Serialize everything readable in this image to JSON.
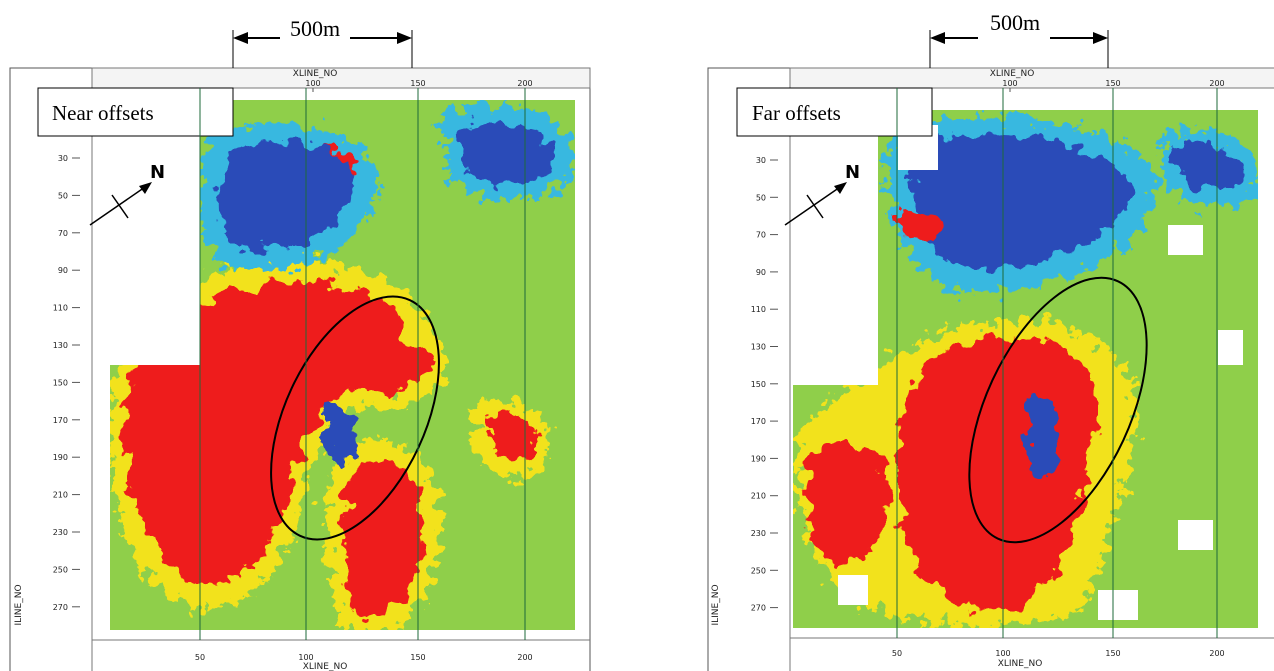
{
  "panels": [
    {
      "label": "Near offsets",
      "scale_label": "500m",
      "north": "N",
      "axis_top": "XLINE_NO",
      "axis_bottom": "XLINE_NO",
      "axis_left": "ILINE_NO",
      "xticks_top": [
        100,
        150,
        200
      ],
      "xticks_bottom": [
        50,
        100,
        150,
        200
      ],
      "yticks": [
        30,
        50,
        70,
        90,
        110,
        130,
        150,
        170,
        190,
        210,
        230,
        250,
        270
      ]
    },
    {
      "label": "Far offsets",
      "scale_label": "500m",
      "north": "N",
      "axis_top": "XLINE_NO",
      "axis_bottom": "XLINE_NO",
      "axis_left": "ILINE_NO",
      "xticks_top": [
        100,
        150,
        200
      ],
      "xticks_bottom": [
        50,
        100,
        150,
        200
      ],
      "yticks": [
        30,
        50,
        70,
        90,
        110,
        130,
        150,
        170,
        190,
        210,
        230,
        250,
        270
      ]
    }
  ]
}
